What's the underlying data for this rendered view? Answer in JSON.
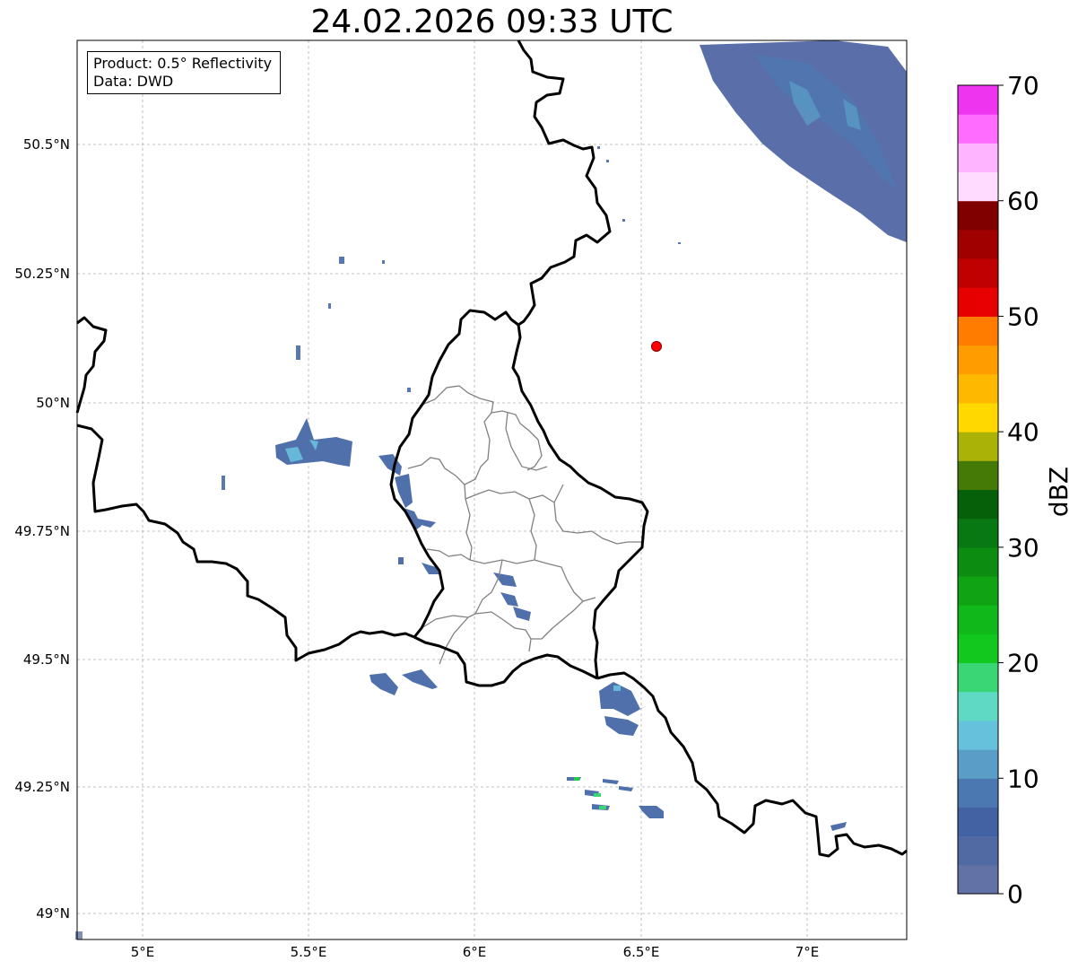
{
  "title": "24.02.2026 09:33 UTC",
  "info": {
    "product_label": "Product: 0.5° Reflectivity",
    "data_label": "Data: DWD"
  },
  "axes": {
    "lon_ticks": [
      "5°E",
      "5.5°E",
      "6°E",
      "6.5°E",
      "7°E"
    ],
    "lat_ticks": [
      "50.5°N",
      "50.25°N",
      "50°N",
      "49.75°N",
      "49.5°N",
      "49.25°N",
      "49°N"
    ]
  },
  "colorbar": {
    "label": "dBZ",
    "ticks": [
      "0",
      "10",
      "20",
      "30",
      "40",
      "50",
      "60",
      "70"
    ],
    "colors": [
      "#6272a6",
      "#526aa3",
      "#4262a4",
      "#4b78b0",
      "#5a9ec8",
      "#66c2dc",
      "#5fd8c4",
      "#3ad676",
      "#12c81e",
      "#10b81a",
      "#10a414",
      "#0c8c10",
      "#087812",
      "#06600a",
      "#467a06",
      "#aab208",
      "#ffd800",
      "#ffb800",
      "#ff9c00",
      "#ff7c00",
      "#e60000",
      "#c00000",
      "#a00000",
      "#800000",
      "#ffdcff",
      "#ffb4ff",
      "#ff6cff",
      "#ee34ee"
    ]
  },
  "site": {
    "name": "radar-site",
    "color": "#ff0000"
  }
}
